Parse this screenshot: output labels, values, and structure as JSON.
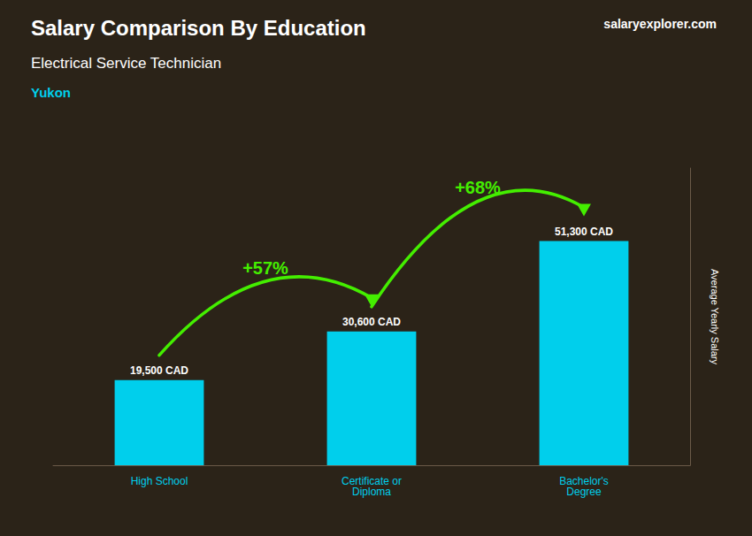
{
  "chart_data": {
    "type": "bar",
    "title": "Salary Comparison By Education",
    "subtitle": "Electrical Service Technician",
    "region": "Yukon",
    "brand": "salaryexplorer.com",
    "ylabel": "Average Yearly Salary",
    "categories": [
      "High School",
      "Certificate or\nDiploma",
      "Bachelor's\nDegree"
    ],
    "values": [
      19500,
      30600,
      51300
    ],
    "value_labels": [
      "19,500 CAD",
      "30,600 CAD",
      "51,300 CAD"
    ],
    "data_labels": true,
    "color": "#00cfec",
    "annotations": [
      {
        "text": "+57%",
        "color": "#44ee00"
      },
      {
        "text": "+68%",
        "color": "#44ee00"
      }
    ],
    "ylim": [
      0,
      68000
    ],
    "tick_labels": "x",
    "grid": false
  }
}
